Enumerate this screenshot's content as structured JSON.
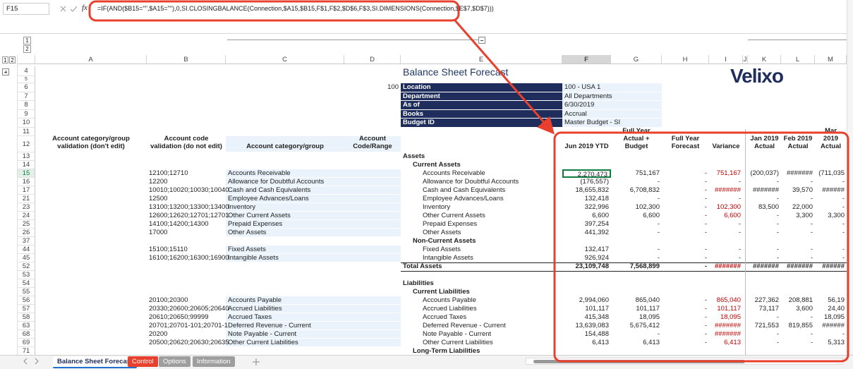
{
  "formula_bar": {
    "name_box": "F15",
    "fx_label": "fx",
    "formula": "=IF(AND($B15=\"\",$A15=\"\"),0,SI.CLOSINGBALANCE(Connection,$A15,$B15,F$1,F$2,$D$6,F$3,SI.DIMENSIONS(Connection,$E$7,$D$7)))"
  },
  "outline_levels": [
    "1",
    "2"
  ],
  "columns": [
    "A",
    "B",
    "C",
    "D",
    "E",
    "F",
    "G",
    "H",
    "I",
    "J",
    "K",
    "L",
    "M"
  ],
  "logo": "Velixo",
  "sheet": {
    "rows": [
      {
        "n": "4",
        "cells": {
          "E": "Balance Sheet Forecast"
        }
      },
      {
        "n": "5",
        "cells": {}
      },
      {
        "n": "6",
        "cells": {
          "D": "100",
          "E": "Location",
          "F": "100 - USA 1"
        }
      },
      {
        "n": "7",
        "cells": {
          "E": "Department",
          "F": "All Departments"
        }
      },
      {
        "n": "8",
        "cells": {
          "E": "As of",
          "F": "6/30/2019"
        }
      },
      {
        "n": "9",
        "cells": {
          "E": "Books",
          "F": "Accrual"
        }
      },
      {
        "n": "10",
        "cells": {
          "E": "Budget ID",
          "F": "Master Budget - SI"
        }
      },
      {
        "n": "11",
        "cells": {}
      },
      {
        "n": "12",
        "cells": {
          "A": "Account category/group validation (don't edit)",
          "B": "Account code validation (do not edit)",
          "C": "Account category/group",
          "D": "Account Code/Range",
          "F": "Jun 2019 YTD",
          "G": "Full Year Actual + Budget",
          "H": "Full Year Forecast",
          "I": "Variance",
          "K": "Jan 2019 Actual",
          "L": "Feb 2019 Actual",
          "M": "Mar 2019 Actual"
        }
      },
      {
        "n": "13",
        "cells": {
          "E": "Assets"
        }
      },
      {
        "n": "14",
        "cells": {
          "E": "Current Assets"
        }
      },
      {
        "n": "15",
        "cells": {
          "B": "12100;12710",
          "C": "Accounts Receivable",
          "E": "Accounts Receivable",
          "F": "2,270,473",
          "G": "751,167",
          "H": "-",
          "I": "751,167",
          "K": "(200,037)",
          "L": "#######",
          "M": "(711,035"
        }
      },
      {
        "n": "16",
        "cells": {
          "B": "12200",
          "C": "Allowance for Doubtful Accounts",
          "E": "Allowance for Doubtful Accounts",
          "F": "(176,557)",
          "G": "-",
          "H": "-",
          "I": "-",
          "K": "-",
          "L": "-",
          "M": "-"
        }
      },
      {
        "n": "17",
        "cells": {
          "B": "10010;10020;10030;10040",
          "C": "Cash and Cash Equivalents",
          "E": "Cash and Cash Equivalents",
          "F": "18,655,832",
          "G": "6,708,832",
          "H": "-",
          "I": "#######",
          "K": "#######",
          "L": "39,570",
          "M": "######"
        }
      },
      {
        "n": "21",
        "cells": {
          "B": "12500",
          "C": "Employee Advances/Loans",
          "E": "Employee Advances/Loans",
          "F": "132,418",
          "G": "-",
          "H": "-",
          "I": "-",
          "K": "-",
          "L": "-",
          "M": "-"
        }
      },
      {
        "n": "23",
        "cells": {
          "B": "13100;13200;13300;13400",
          "C": "Inventory",
          "E": "Inventory",
          "F": "322,996",
          "G": "102,300",
          "H": "-",
          "I": "102,300",
          "K": "83,500",
          "L": "22,000",
          "M": "-"
        }
      },
      {
        "n": "24",
        "cells": {
          "B": "12600;12620;12701;12701",
          "C": "Other Current Assets",
          "E": "Other Current Assets",
          "F": "6,600",
          "G": "6,600",
          "H": "-",
          "I": "6,600",
          "K": "-",
          "L": "3,300",
          "M": "3,300"
        }
      },
      {
        "n": "25",
        "cells": {
          "B": "14100;14200;14300",
          "C": "Prepaid Expenses",
          "E": "Prepaid Expenses",
          "F": "397,254",
          "G": "-",
          "H": "-",
          "I": "-",
          "K": "-",
          "L": "-",
          "M": "-"
        }
      },
      {
        "n": "26",
        "cells": {
          "B": "17000",
          "C": "Other Assets",
          "E": "Other Assets",
          "F": "441,392",
          "G": "-",
          "H": "-",
          "I": "-",
          "K": "-",
          "L": "-",
          "M": "-"
        }
      },
      {
        "n": "37",
        "cells": {
          "E": "Non-Current Assets"
        }
      },
      {
        "n": "44",
        "cells": {
          "B": "15100;15110",
          "C": "Fixed Assets",
          "E": "Fixed Assets",
          "F": "132,417",
          "G": "-",
          "H": "-",
          "I": "-",
          "K": "-",
          "L": "-",
          "M": "-"
        }
      },
      {
        "n": "45",
        "cells": {
          "B": "16100;16200;16300;16900",
          "C": "Intangible Assets",
          "E": "Intangible Assets",
          "F": "926,924",
          "G": "-",
          "H": "-",
          "I": "-",
          "K": "-",
          "L": "-",
          "M": "-"
        }
      },
      {
        "n": "52",
        "cells": {
          "E": "Total Assets",
          "F": "23,109,748",
          "G": "7,568,899",
          "H": "-",
          "I": "#######",
          "K": "#######",
          "L": "#######",
          "M": "######"
        }
      },
      {
        "n": "53",
        "cells": {}
      },
      {
        "n": "54",
        "cells": {
          "E": "Liabilities"
        }
      },
      {
        "n": "55",
        "cells": {
          "E": "Current Liabilities"
        }
      },
      {
        "n": "56",
        "cells": {
          "B": "20100;20300",
          "C": "Accounts Payable",
          "E": "Accounts Payable",
          "F": "2,994,060",
          "G": "865,040",
          "H": "-",
          "I": "865,040",
          "K": "227,362",
          "L": "208,881",
          "M": "56,19"
        }
      },
      {
        "n": "57",
        "cells": {
          "B": "20330;20600;20605;20640",
          "C": "Accrued Liabilities",
          "E": "Accrued Liabilities",
          "F": "101,117",
          "G": "101,117",
          "H": "-",
          "I": "101,117",
          "K": "73,117",
          "L": "3,600",
          "M": "24,40"
        }
      },
      {
        "n": "58",
        "cells": {
          "B": "20610;20650;99999",
          "C": "Accrued Taxes",
          "E": "Accrued Taxes",
          "F": "415,348",
          "G": "18,095",
          "H": "-",
          "I": "18,095",
          "K": "-",
          "L": "-",
          "M": "18,095"
        }
      },
      {
        "n": "63",
        "cells": {
          "B": "20701;20701-101;20701-1",
          "C": "Deferred Revenue - Current",
          "E": "Deferred Revenue - Current",
          "F": "13,639,083",
          "G": "5,675,412",
          "H": "-",
          "I": "#######",
          "K": "721,553",
          "L": "819,855",
          "M": "######"
        }
      },
      {
        "n": "68",
        "cells": {
          "B": "20200",
          "C": "Note Payable - Current",
          "E": "Note Payable - Current",
          "F": "154,488",
          "G": "-",
          "H": "-",
          "I": "#######",
          "K": "-",
          "L": "-",
          "M": "-"
        }
      },
      {
        "n": "69",
        "cells": {
          "B": "20500;20620;20630;20635",
          "C": "Other Current Liabilities",
          "E": "Other Current Liabilities",
          "F": "6,413",
          "G": "6,413",
          "H": "-",
          "I": "6,413",
          "K": "-",
          "L": "-",
          "M": "5,313"
        }
      },
      {
        "n": "71",
        "cells": {
          "E": "Long-Term Liabilities"
        }
      }
    ]
  },
  "tabs": [
    "Balance Sheet Forecast",
    "Control",
    "Options",
    "Information"
  ]
}
